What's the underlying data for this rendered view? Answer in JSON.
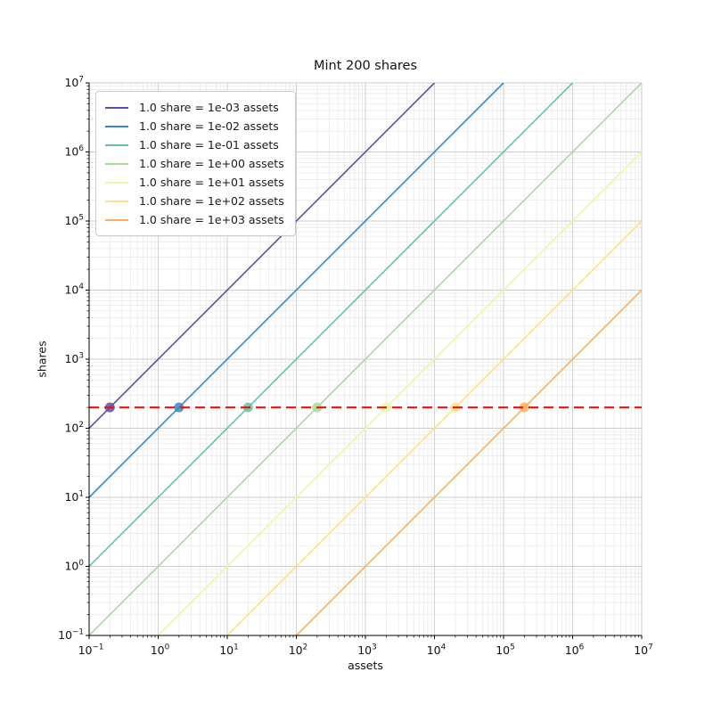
{
  "chart_data": {
    "type": "line",
    "title": "Mint 200 shares",
    "xlabel": "assets",
    "ylabel": "shares",
    "xscale": "log",
    "yscale": "log",
    "xlim": [
      0.1,
      10000000
    ],
    "ylim": [
      0.1,
      10000000
    ],
    "x_tick_exponents": [
      -1,
      0,
      1,
      2,
      3,
      4,
      5,
      6,
      7
    ],
    "y_tick_exponents": [
      -1,
      0,
      1,
      2,
      3,
      4,
      5,
      6,
      7
    ],
    "grid": {
      "major": true,
      "minor": true
    },
    "legend_position": "upper-left",
    "series": [
      {
        "label": "1.0 share = 1e-03 assets",
        "assets_per_share": 0.001,
        "color": "#5e4fa2",
        "dot": {
          "x": 0.2,
          "y": 200
        }
      },
      {
        "label": "1.0 share = 1e-02 assets",
        "assets_per_share": 0.01,
        "color": "#3a87c0",
        "dot": {
          "x": 2,
          "y": 200
        }
      },
      {
        "label": "1.0 share = 1e-01 assets",
        "assets_per_share": 0.1,
        "color": "#66c2a5",
        "dot": {
          "x": 20,
          "y": 200
        }
      },
      {
        "label": "1.0 share = 1e+00 assets",
        "assets_per_share": 1,
        "color": "#a8db9b",
        "dot": {
          "x": 200,
          "y": 200
        }
      },
      {
        "label": "1.0 share = 1e+01 assets",
        "assets_per_share": 10,
        "color": "#edf8a3",
        "dot": {
          "x": 2000,
          "y": 200
        }
      },
      {
        "label": "1.0 share = 1e+02 assets",
        "assets_per_share": 100,
        "color": "#fee08b",
        "dot": {
          "x": 20000,
          "y": 200
        }
      },
      {
        "label": "1.0 share = 1e+03 assets",
        "assets_per_share": 1000,
        "color": "#fdae61",
        "dot": {
          "x": 200000,
          "y": 200
        }
      }
    ],
    "target_line": {
      "y": 200,
      "color": "#e81212",
      "style": "dashed"
    },
    "colors": {
      "major_grid": "#cdcdcd",
      "minor_grid": "#e7e7e7",
      "spine_dark": "#000000",
      "spine_light": "#cccccc"
    }
  }
}
